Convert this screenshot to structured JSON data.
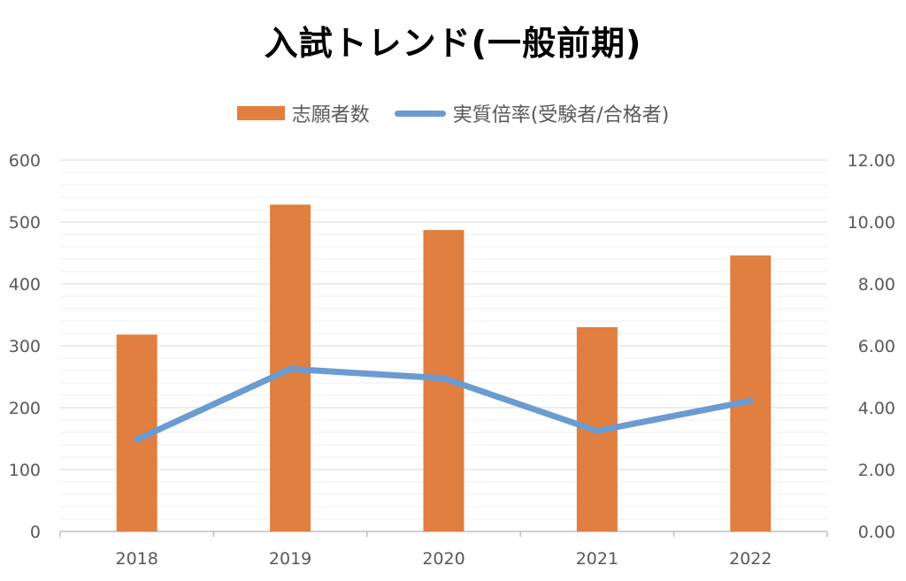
{
  "chart_data": {
    "type": "bar",
    "title": "入試トレンド(一般前期)",
    "categories": [
      "2018",
      "2019",
      "2020",
      "2021",
      "2022"
    ],
    "series": [
      {
        "name": "志願者数",
        "type": "bar",
        "axis": "left",
        "color": "#E07F3F",
        "values": [
          318,
          528,
          487,
          330,
          446
        ]
      },
      {
        "name": "実質倍率(受験者/合格者)",
        "type": "line",
        "axis": "right",
        "color": "#6A9BD1",
        "values": [
          2.97,
          5.25,
          4.95,
          3.25,
          4.22
        ]
      }
    ],
    "ylim_left": [
      0,
      600
    ],
    "yticks_left": [
      "0",
      "100",
      "200",
      "300",
      "400",
      "500",
      "600"
    ],
    "ylim_right": [
      0,
      12
    ],
    "yticks_right": [
      "0.00",
      "2.00",
      "4.00",
      "6.00",
      "8.00",
      "10.00",
      "12.00"
    ],
    "grid": true,
    "legend_position": "top"
  }
}
